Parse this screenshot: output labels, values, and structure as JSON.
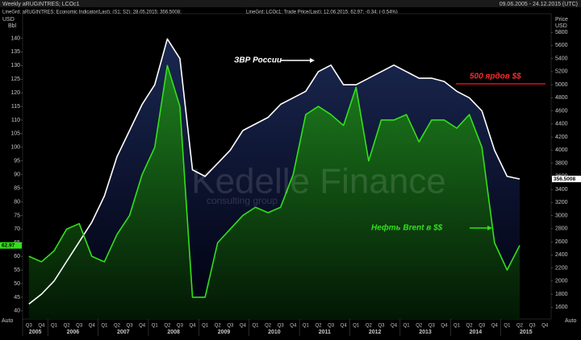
{
  "chart_data": {
    "type": "line",
    "header": {
      "title": "Weekly aRUGINTRES; LCOc1",
      "date_range": "09.06.2005 - 24.12.2015 (UTC)",
      "legend_a": "LineGrd; aRUGINTRES; Economic Indicator(Last); (S1; S2); 28.05.2015; 356.5008;",
      "legend_b": "LineGrd; LCOc1; Trade Price(Last); 12.06.2015; 62.97; -0.34; (-0.54%)"
    },
    "y_unit": [
      "USD",
      "Bbl"
    ],
    "y2_unit": [
      "Price",
      "USD"
    ],
    "corner_label": "Auto",
    "watermark": [
      "Kedelle Finance",
      "consulting group"
    ],
    "categories": [
      "Q3",
      "Q4",
      "Q1",
      "Q2",
      "Q3",
      "Q4",
      "Q1",
      "Q2",
      "Q3",
      "Q4",
      "Q1",
      "Q2",
      "Q3",
      "Q4",
      "Q1",
      "Q2",
      "Q3",
      "Q4",
      "Q1",
      "Q2",
      "Q3",
      "Q4",
      "Q1",
      "Q2",
      "Q3",
      "Q4",
      "Q1",
      "Q2",
      "Q3",
      "Q4",
      "Q1",
      "Q2",
      "Q3",
      "Q4",
      "Q1",
      "Q2",
      "Q3",
      "Q4",
      "Q1",
      "Q2",
      "Q3",
      "Q4"
    ],
    "years": [
      "2005",
      "2006",
      "2007",
      "2008",
      "2009",
      "2010",
      "2011",
      "2012",
      "2013",
      "2014",
      "2015"
    ],
    "series": [
      {
        "name": "aRUGINTRES",
        "color": "#ffffff",
        "axis": "y2",
        "values": [
          1650,
          1800,
          2000,
          2300,
          2600,
          2900,
          3300,
          3900,
          4300,
          4700,
          5000,
          5700,
          5400,
          3700,
          3600,
          3800,
          4000,
          4300,
          4400,
          4500,
          4700,
          4800,
          4900,
          5200,
          5300,
          5000,
          5000,
          5100,
          5200,
          5300,
          5200,
          5100,
          5100,
          5050,
          4900,
          4800,
          4600,
          4000,
          3600,
          3560,
          null,
          null
        ],
        "last_label": "356.5008"
      },
      {
        "name": "LCOc1",
        "color": "#33e01a",
        "values": [
          60,
          58,
          62,
          70,
          72,
          60,
          58,
          68,
          75,
          90,
          100,
          130,
          115,
          45,
          45,
          65,
          70,
          75,
          78,
          76,
          78,
          90,
          112,
          115,
          112,
          108,
          122,
          95,
          110,
          110,
          112,
          102,
          110,
          110,
          107,
          112,
          100,
          65,
          55,
          64,
          null,
          null
        ],
        "last_label": "62.97"
      }
    ],
    "ylim": [
      37,
      149
    ],
    "yticks": [
      40,
      45,
      50,
      55,
      60,
      65,
      70,
      75,
      80,
      85,
      90,
      95,
      100,
      105,
      110,
      115,
      120,
      125,
      130,
      135,
      140
    ],
    "y2lim": [
      1420,
      6085
    ],
    "y2ticks": [
      1600,
      1800,
      2000,
      2200,
      2400,
      2600,
      2800,
      3000,
      3200,
      3400,
      3600,
      3800,
      4000,
      4200,
      4400,
      4600,
      4800,
      5000,
      5200,
      5400,
      5600,
      5800
    ],
    "annotations": [
      {
        "text": "ЗВР России"
      },
      {
        "text": "500 ярдов $$"
      },
      {
        "text": "Нефть Brent в $$"
      }
    ]
  }
}
